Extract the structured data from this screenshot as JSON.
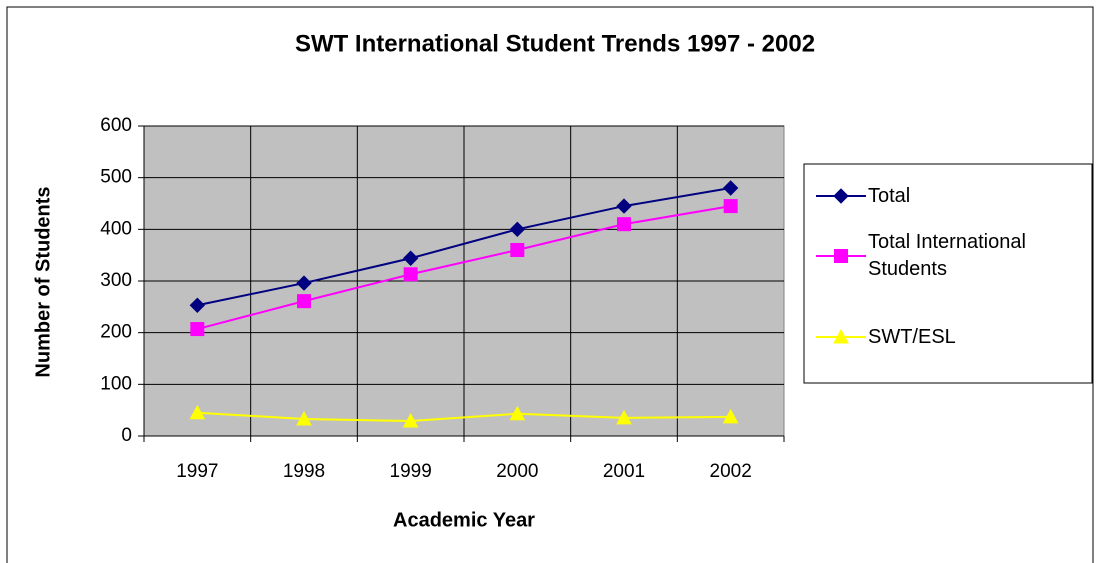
{
  "chart_data": {
    "type": "line",
    "title": "SWT International Student Trends 1997 - 2002",
    "x_label": "Academic Year",
    "y_label": "Number of Students",
    "categories": [
      "1997",
      "1998",
      "1999",
      "2000",
      "2001",
      "2002"
    ],
    "series": [
      {
        "name": "Total",
        "color": "#000080",
        "marker": "diamond",
        "values": [
          253,
          296,
          344,
          400,
          445,
          480
        ]
      },
      {
        "name": "Total International Students",
        "color": "#ff00ff",
        "marker": "square",
        "values": [
          207,
          261,
          313,
          360,
          410,
          445
        ]
      },
      {
        "name": "SWT/ESL",
        "color": "#ffff00",
        "marker": "triangle",
        "values": [
          45,
          33,
          29,
          43,
          35,
          37
        ]
      }
    ],
    "ylim": [
      0,
      600
    ],
    "yticks": [
      0,
      100,
      200,
      300,
      400,
      500,
      600
    ],
    "grid": true,
    "plot_background": "#c0c0c0",
    "legend": "right"
  }
}
